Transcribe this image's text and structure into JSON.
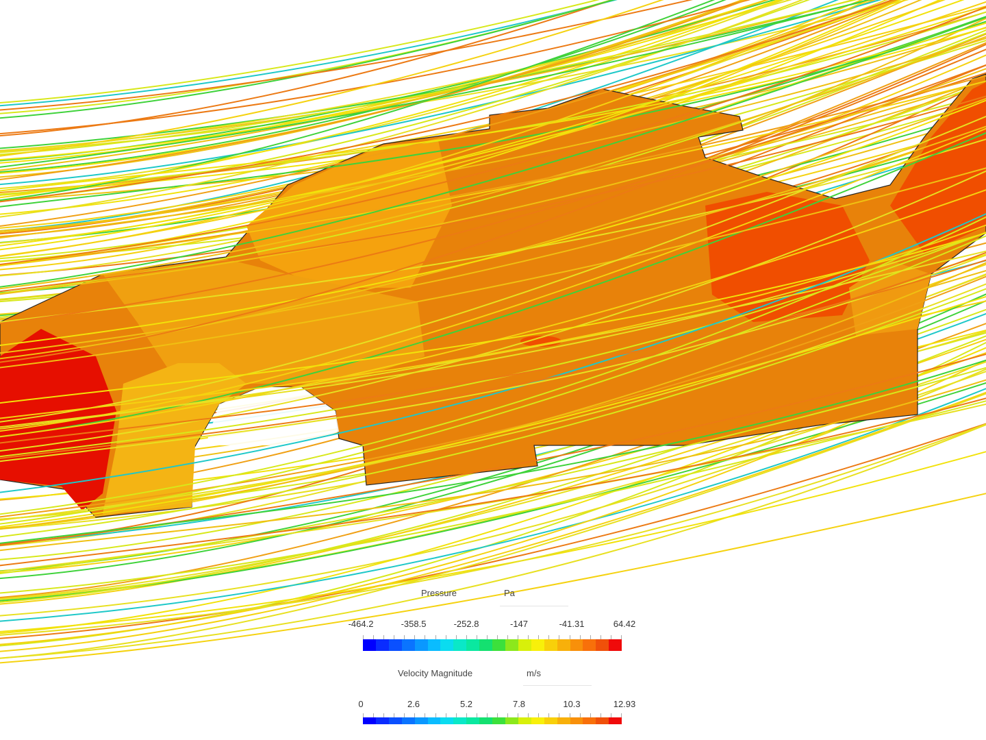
{
  "legends": [
    {
      "title": "Pressure",
      "unit": "Pa",
      "ticks": [
        -464.2,
        -358.5,
        -252.8,
        -147,
        -41.31,
        64.42
      ]
    },
    {
      "title": "Velocity Magnitude",
      "unit": "m/s",
      "ticks": [
        0,
        2.6,
        5.2,
        7.8,
        10.3,
        12.93
      ]
    }
  ]
}
